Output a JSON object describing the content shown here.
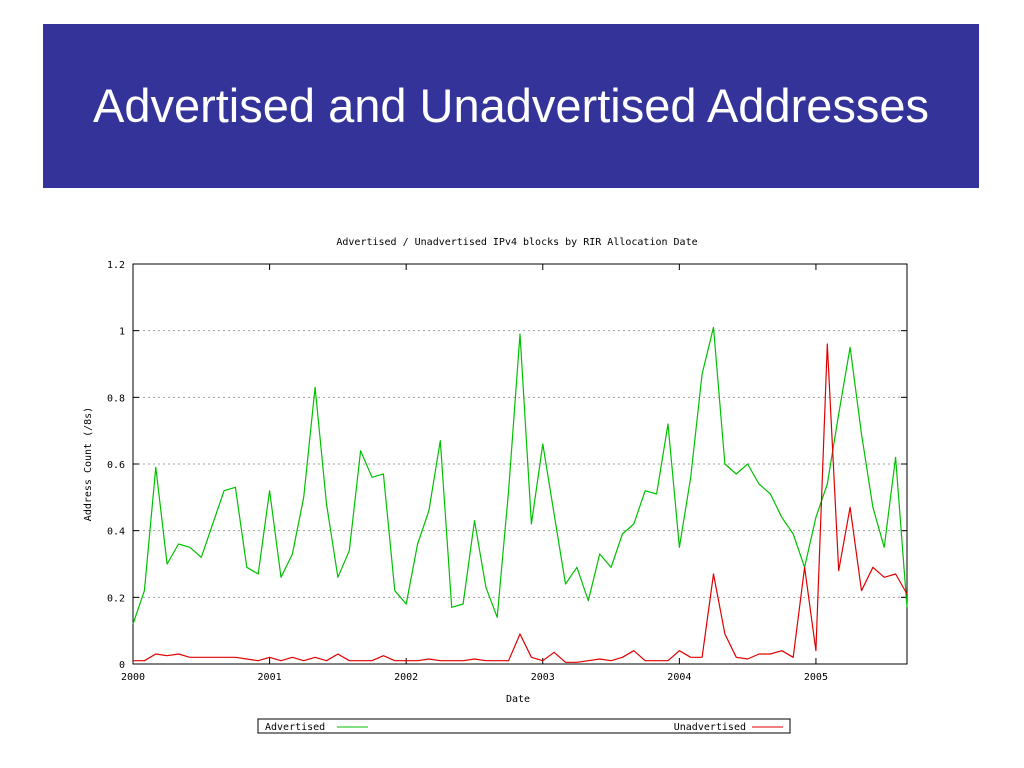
{
  "slide": {
    "title": "Advertised and Unadvertised Addresses"
  },
  "colors": {
    "title_bar": "#333399",
    "title_text": "#ffffff",
    "advertised": "#00c000",
    "unadvertised": "#e00000",
    "grid": "#a0a0a0"
  },
  "chart_data": {
    "type": "line",
    "title": "Advertised / Unadvertised IPv4 blocks by RIR Allocation Date",
    "xlabel": "Date",
    "ylabel": "Address Count (/8s)",
    "xlim": [
      "2000-01",
      "2005-09"
    ],
    "ylim": [
      0,
      1.2
    ],
    "x_ticks": [
      "2000",
      "2001",
      "2002",
      "2003",
      "2004",
      "2005"
    ],
    "y_ticks": [
      "0",
      "0.2",
      "0.4",
      "0.6",
      "0.8",
      "1",
      "1.2"
    ],
    "grid": "horizontal dashed",
    "legend_position": "bottom",
    "x": [
      "2000-01",
      "2000-02",
      "2000-03",
      "2000-04",
      "2000-05",
      "2000-06",
      "2000-07",
      "2000-08",
      "2000-09",
      "2000-10",
      "2000-11",
      "2000-12",
      "2001-01",
      "2001-02",
      "2001-03",
      "2001-04",
      "2001-05",
      "2001-06",
      "2001-07",
      "2001-08",
      "2001-09",
      "2001-10",
      "2001-11",
      "2001-12",
      "2002-01",
      "2002-02",
      "2002-03",
      "2002-04",
      "2002-05",
      "2002-06",
      "2002-07",
      "2002-08",
      "2002-09",
      "2002-10",
      "2002-11",
      "2002-12",
      "2003-01",
      "2003-02",
      "2003-03",
      "2003-04",
      "2003-05",
      "2003-06",
      "2003-07",
      "2003-08",
      "2003-09",
      "2003-10",
      "2003-11",
      "2003-12",
      "2004-01",
      "2004-02",
      "2004-03",
      "2004-04",
      "2004-05",
      "2004-06",
      "2004-07",
      "2004-08",
      "2004-09",
      "2004-10",
      "2004-11",
      "2004-12",
      "2005-01",
      "2005-02",
      "2005-03",
      "2005-04",
      "2005-05",
      "2005-06",
      "2005-07",
      "2005-08",
      "2005-09"
    ],
    "series": [
      {
        "name": "Advertised",
        "values": [
          0.12,
          0.22,
          0.59,
          0.3,
          0.36,
          0.35,
          0.32,
          0.42,
          0.52,
          0.53,
          0.29,
          0.27,
          0.52,
          0.26,
          0.33,
          0.5,
          0.83,
          0.48,
          0.26,
          0.34,
          0.64,
          0.56,
          0.57,
          0.22,
          0.18,
          0.36,
          0.46,
          0.67,
          0.17,
          0.18,
          0.43,
          0.23,
          0.14,
          0.52,
          0.99,
          0.42,
          0.66,
          0.45,
          0.24,
          0.29,
          0.19,
          0.33,
          0.29,
          0.39,
          0.42,
          0.52,
          0.51,
          0.72,
          0.35,
          0.56,
          0.87,
          1.01,
          0.6,
          0.57,
          0.6,
          0.54,
          0.51,
          0.44,
          0.39,
          0.29,
          0.44,
          0.54,
          0.75,
          0.95,
          0.69,
          0.47,
          0.35,
          0.62,
          0.17
        ]
      },
      {
        "name": "Unadvertised",
        "values": [
          0.01,
          0.01,
          0.03,
          0.025,
          0.03,
          0.02,
          0.02,
          0.02,
          0.02,
          0.02,
          0.015,
          0.01,
          0.02,
          0.01,
          0.02,
          0.01,
          0.02,
          0.01,
          0.03,
          0.01,
          0.01,
          0.01,
          0.025,
          0.01,
          0.01,
          0.01,
          0.015,
          0.01,
          0.01,
          0.01,
          0.015,
          0.01,
          0.01,
          0.01,
          0.09,
          0.02,
          0.01,
          0.035,
          0.005,
          0.005,
          0.01,
          0.015,
          0.01,
          0.02,
          0.04,
          0.01,
          0.01,
          0.01,
          0.04,
          0.02,
          0.02,
          0.27,
          0.09,
          0.02,
          0.015,
          0.03,
          0.03,
          0.04,
          0.02,
          0.29,
          0.04,
          0.96,
          0.28,
          0.47,
          0.22,
          0.29,
          0.26,
          0.27,
          0.21
        ]
      }
    ]
  }
}
